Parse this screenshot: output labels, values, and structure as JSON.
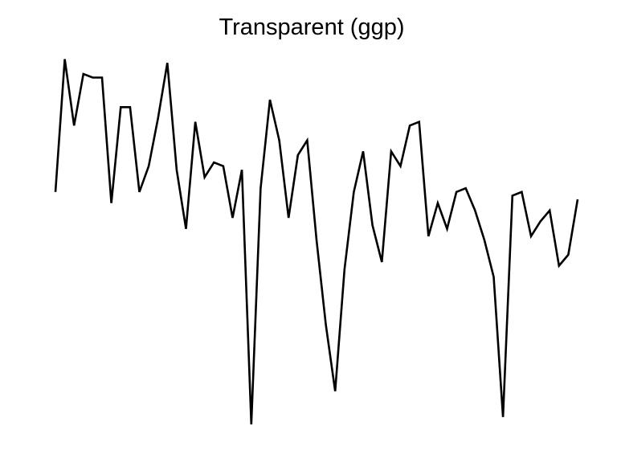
{
  "chart_data": {
    "type": "line",
    "title": "Transparent (ggp)",
    "xlabel": "",
    "ylabel": "",
    "grid": false,
    "axes_visible": false,
    "background": "transparent",
    "line_color": "#000000",
    "x": [
      1,
      2,
      3,
      4,
      5,
      6,
      7,
      8,
      9,
      10,
      11,
      12,
      13,
      14,
      15,
      16,
      17,
      18,
      19,
      20,
      21,
      22,
      23,
      24,
      25,
      26,
      27,
      28,
      29,
      30,
      31,
      32,
      33,
      34,
      35,
      36,
      37,
      38,
      39,
      40,
      41,
      42,
      43,
      44,
      45,
      46,
      47,
      48,
      49,
      50,
      51,
      52,
      53,
      54,
      55,
      56,
      57
    ],
    "series": [
      {
        "values": [
          0.63,
          0.99,
          0.81,
          0.95,
          0.94,
          0.94,
          0.6,
          0.86,
          0.86,
          0.63,
          0.7,
          0.83,
          0.98,
          0.69,
          0.53,
          0.82,
          0.67,
          0.71,
          0.7,
          0.56,
          0.69,
          0.0,
          0.64,
          0.88,
          0.77,
          0.56,
          0.73,
          0.77,
          0.5,
          0.27,
          0.09,
          0.42,
          0.63,
          0.74,
          0.54,
          0.44,
          0.74,
          0.7,
          0.81,
          0.82,
          0.51,
          0.6,
          0.53,
          0.63,
          0.64,
          0.58,
          0.5,
          0.4,
          0.02,
          0.62,
          0.63,
          0.51,
          0.55,
          0.58,
          0.43,
          0.46,
          0.61
        ]
      }
    ],
    "xlim": [
      1,
      57
    ],
    "ylim": [
      0,
      1
    ]
  }
}
